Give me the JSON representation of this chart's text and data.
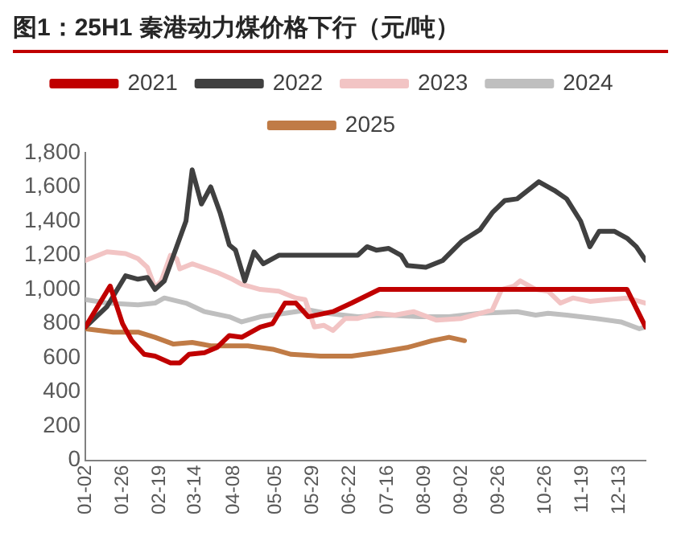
{
  "chart_data": {
    "type": "line",
    "title": "图1：25H1 秦港动力煤价格下行（元/吨）",
    "xlim": [
      "--01-02",
      "--12-30"
    ],
    "xticks": [
      {
        "value": "--01-02",
        "label": "01-02"
      },
      {
        "value": "--01-26",
        "label": "01-26"
      },
      {
        "value": "--02-19",
        "label": "02-19"
      },
      {
        "value": "--03-14",
        "label": "03-14"
      },
      {
        "value": "--04-08",
        "label": "04-08"
      },
      {
        "value": "--05-05",
        "label": "05-05"
      },
      {
        "value": "--05-29",
        "label": "05-29"
      },
      {
        "value": "--06-22",
        "label": "06-22"
      },
      {
        "value": "--07-16",
        "label": "07-16"
      },
      {
        "value": "--08-09",
        "label": "08-09"
      },
      {
        "value": "--09-02",
        "label": "09-02"
      },
      {
        "value": "--09-26",
        "label": "09-26"
      },
      {
        "value": "--10-26",
        "label": "10-26"
      },
      {
        "value": "--11-19",
        "label": "11-19"
      },
      {
        "value": "--12-13",
        "label": "12-13"
      }
    ],
    "ylim": [
      0,
      1800
    ],
    "yticks": [
      0,
      200,
      400,
      600,
      800,
      {
        "value": 1000,
        "label": "1,000"
      },
      {
        "value": 1200,
        "label": "1,200"
      },
      {
        "value": 1400,
        "label": "1,400"
      },
      {
        "value": 1600,
        "label": "1,600"
      },
      {
        "value": 1800,
        "label": "1,800"
      }
    ],
    "grid": false,
    "legend": "top",
    "marker": "none",
    "line_style": "solid",
    "series": [
      {
        "name": "2021",
        "color": "#c00000",
        "x": [
          "--01-02",
          "--01-18",
          "--01-26",
          "--02-01",
          "--02-09",
          "--02-16",
          "--02-26",
          "--03-04",
          "--03-10",
          "--03-20",
          "--03-28",
          "--04-05",
          "--04-13",
          "--04-25",
          "--05-03",
          "--05-11",
          "--05-18",
          "--05-26",
          "--06-11",
          "--06-23",
          "--07-11",
          "--12-18",
          "--12-30"
        ],
        "values": [
          780,
          1020,
          800,
          700,
          620,
          610,
          570,
          570,
          620,
          630,
          660,
          730,
          720,
          780,
          800,
          920,
          920,
          840,
          870,
          920,
          1000,
          1000,
          780
        ]
      },
      {
        "name": "2022",
        "color": "#404040",
        "x": [
          "--01-02",
          "--01-16",
          "--01-20",
          "--01-28",
          "--02-05",
          "--02-11",
          "--02-16",
          "--02-22",
          "--02-28",
          "--03-08",
          "--03-12",
          "--03-18",
          "--03-24",
          "--03-30",
          "--04-05",
          "--04-09",
          "--04-15",
          "--04-21",
          "--04-27",
          "--05-07",
          "--06-27",
          "--07-03",
          "--07-09",
          "--07-17",
          "--07-25",
          "--07-29",
          "--08-10",
          "--08-21",
          "--09-02",
          "--09-14",
          "--09-22",
          "--09-30",
          "--10-08",
          "--10-22",
          "--11-01",
          "--11-09",
          "--11-18",
          "--11-24",
          "--11-30",
          "--12-10",
          "--12-18",
          "--12-24",
          "--12-30"
        ],
        "values": [
          780,
          900,
          960,
          1080,
          1060,
          1070,
          1000,
          1050,
          1200,
          1400,
          1700,
          1500,
          1600,
          1450,
          1260,
          1230,
          1050,
          1220,
          1150,
          1200,
          1200,
          1250,
          1230,
          1240,
          1200,
          1140,
          1130,
          1170,
          1280,
          1350,
          1450,
          1520,
          1530,
          1630,
          1580,
          1530,
          1400,
          1250,
          1340,
          1340,
          1300,
          1250,
          1170
        ]
      },
      {
        "name": "2023",
        "color": "#f2c4c4",
        "x": [
          "--01-02",
          "--01-16",
          "--01-28",
          "--02-05",
          "--02-11",
          "--02-16",
          "--02-20",
          "--02-26",
          "--03-02",
          "--03-04",
          "--03-12",
          "--03-28",
          "--04-07",
          "--04-13",
          "--04-25",
          "--05-07",
          "--05-18",
          "--05-24",
          "--05-30",
          "--06-05",
          "--06-11",
          "--06-19",
          "--06-27",
          "--07-09",
          "--07-21",
          "--08-02",
          "--08-17",
          "--09-02",
          "--09-14",
          "--09-22",
          "--09-28",
          "--10-06",
          "--10-10",
          "--10-20",
          "--10-28",
          "--11-05",
          "--11-13",
          "--11-24",
          "--12-06",
          "--12-18",
          "--12-30"
        ],
        "values": [
          1170,
          1220,
          1210,
          1180,
          1130,
          1010,
          1050,
          1200,
          1180,
          1120,
          1150,
          1100,
          1060,
          1030,
          1000,
          990,
          950,
          940,
          780,
          790,
          760,
          830,
          830,
          860,
          850,
          870,
          820,
          830,
          860,
          880,
          1000,
          1020,
          1050,
          1000,
          990,
          920,
          950,
          930,
          940,
          950,
          920
        ]
      },
      {
        "name": "2024",
        "color": "#bfbfbf",
        "x": [
          "--01-02",
          "--01-16",
          "--02-05",
          "--02-16",
          "--02-22",
          "--03-08",
          "--03-20",
          "--04-05",
          "--04-13",
          "--04-25",
          "--05-11",
          "--05-26",
          "--06-07",
          "--06-27",
          "--07-17",
          "--08-06",
          "--08-25",
          "--09-14",
          "--10-08",
          "--10-20",
          "--10-28",
          "--11-09",
          "--11-28",
          "--12-14",
          "--12-26",
          "--12-30"
        ],
        "values": [
          940,
          920,
          910,
          920,
          950,
          920,
          870,
          840,
          810,
          840,
          860,
          880,
          860,
          840,
          850,
          840,
          840,
          860,
          870,
          850,
          860,
          850,
          830,
          810,
          770,
          780
        ]
      },
      {
        "name": "2025",
        "color": "#c07b46",
        "x": [
          "--01-02",
          "--01-20",
          "--02-05",
          "--02-16",
          "--02-28",
          "--03-12",
          "--03-24",
          "--04-17",
          "--05-03",
          "--05-15",
          "--06-03",
          "--06-23",
          "--07-09",
          "--07-29",
          "--08-14",
          "--08-25",
          "--09-04"
        ],
        "values": [
          770,
          750,
          750,
          720,
          680,
          690,
          670,
          670,
          650,
          620,
          610,
          610,
          630,
          660,
          700,
          720,
          700
        ]
      }
    ]
  }
}
